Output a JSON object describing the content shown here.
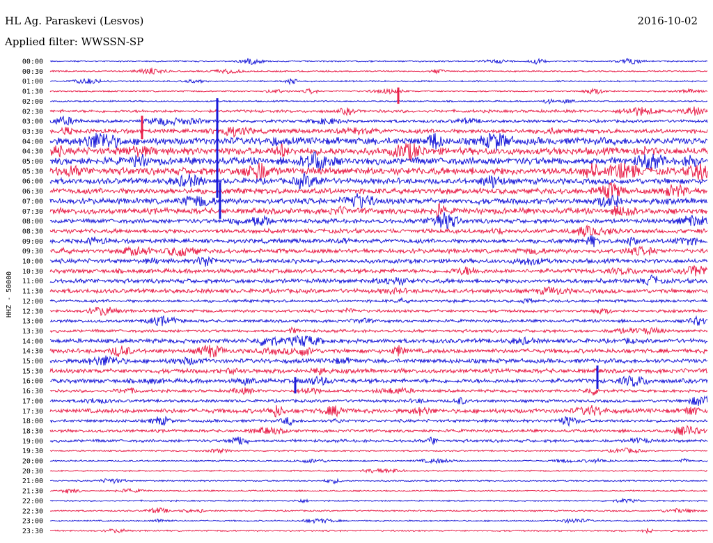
{
  "header": {
    "station": "HL Ag. Paraskevi (Lesvos)",
    "date": "2016-10-02",
    "filter_label": "Applied filter: WWSSN-SP"
  },
  "chart_data": {
    "type": "line",
    "title": "HL Ag. Paraskevi (Lesvos)",
    "xlabel": "",
    "ylabel": "HHZ - 50000",
    "rows": [
      "00:00",
      "00:30",
      "01:00",
      "01:30",
      "02:00",
      "02:30",
      "03:00",
      "03:30",
      "04:00",
      "04:30",
      "05:00",
      "05:30",
      "06:00",
      "06:30",
      "07:00",
      "07:30",
      "08:00",
      "08:30",
      "09:00",
      "09:30",
      "10:00",
      "10:30",
      "11:00",
      "11:30",
      "12:00",
      "12:30",
      "13:00",
      "13:30",
      "14:00",
      "14:30",
      "15:00",
      "15:30",
      "16:00",
      "16:30",
      "17:00",
      "17:30",
      "18:00",
      "18:30",
      "19:00",
      "19:30",
      "20:00",
      "20:30",
      "21:00",
      "21:30",
      "22:00",
      "22:30",
      "23:00",
      "23:30"
    ],
    "amplitude": [
      1,
      1,
      1,
      1,
      1,
      2,
      2,
      3,
      5,
      5,
      5,
      5,
      4,
      4,
      4,
      4,
      3,
      3,
      3,
      3,
      3,
      3,
      3,
      3,
      2,
      2,
      2,
      2,
      3,
      3,
      3,
      3,
      3,
      2,
      2,
      3,
      2,
      2,
      2,
      1,
      1,
      1,
      1,
      1,
      1,
      1,
      1,
      1
    ],
    "series_colors": [
      "#1a1ad8",
      "#e8204a"
    ],
    "grid": false
  }
}
